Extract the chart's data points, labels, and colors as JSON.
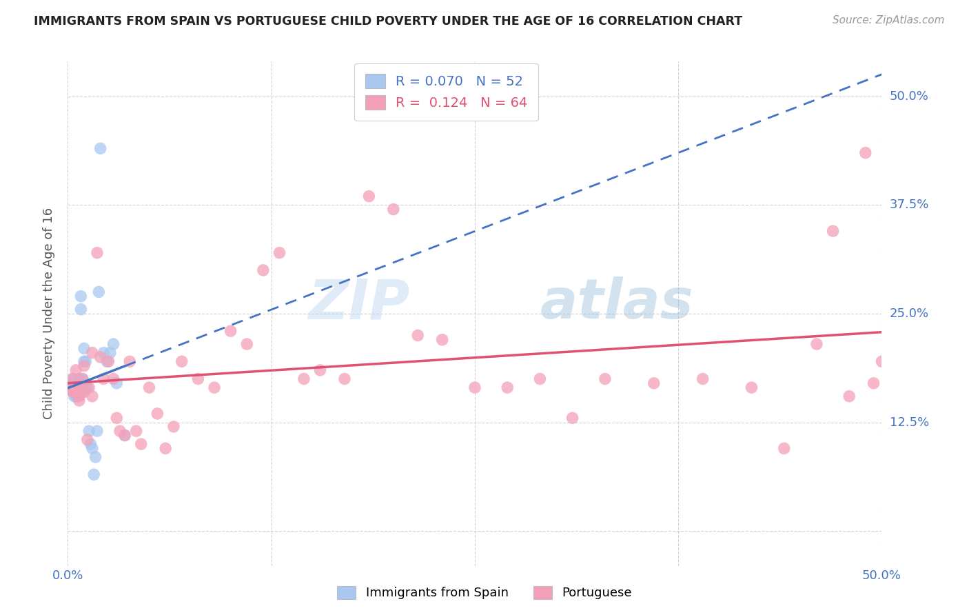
{
  "title": "IMMIGRANTS FROM SPAIN VS PORTUGUESE CHILD POVERTY UNDER THE AGE OF 16 CORRELATION CHART",
  "source": "Source: ZipAtlas.com",
  "ylabel": "Child Poverty Under the Age of 16",
  "legend_label_1": "Immigrants from Spain",
  "legend_label_2": "Portuguese",
  "R1": 0.07,
  "N1": 52,
  "R2": 0.124,
  "N2": 64,
  "color_blue": "#a8c8f0",
  "color_pink": "#f4a0b8",
  "color_blue_text": "#4472c4",
  "color_pink_text": "#e05070",
  "color_line_blue": "#4472c4",
  "color_line_pink": "#e05070",
  "watermark_zip": "ZIP",
  "watermark_atlas": "atlas",
  "xlim": [
    0.0,
    0.5
  ],
  "ylim": [
    -0.04,
    0.54
  ],
  "xticks": [
    0.0,
    0.125,
    0.25,
    0.375,
    0.5
  ],
  "yticks": [
    0.0,
    0.125,
    0.25,
    0.375,
    0.5
  ],
  "ytick_labels_right": [
    "",
    "12.5%",
    "25.0%",
    "37.5%",
    "50.0%"
  ],
  "spain_x": [
    0.001,
    0.002,
    0.002,
    0.003,
    0.003,
    0.003,
    0.003,
    0.004,
    0.004,
    0.004,
    0.004,
    0.005,
    0.005,
    0.005,
    0.005,
    0.005,
    0.005,
    0.006,
    0.006,
    0.006,
    0.006,
    0.006,
    0.007,
    0.007,
    0.007,
    0.007,
    0.007,
    0.008,
    0.008,
    0.008,
    0.009,
    0.009,
    0.01,
    0.01,
    0.01,
    0.011,
    0.011,
    0.012,
    0.013,
    0.014,
    0.015,
    0.016,
    0.017,
    0.018,
    0.019,
    0.02,
    0.022,
    0.024,
    0.026,
    0.028,
    0.03,
    0.035
  ],
  "spain_y": [
    0.17,
    0.17,
    0.165,
    0.165,
    0.16,
    0.17,
    0.175,
    0.16,
    0.16,
    0.155,
    0.165,
    0.16,
    0.165,
    0.155,
    0.155,
    0.16,
    0.165,
    0.165,
    0.16,
    0.155,
    0.165,
    0.17,
    0.175,
    0.165,
    0.175,
    0.155,
    0.16,
    0.255,
    0.27,
    0.165,
    0.16,
    0.175,
    0.21,
    0.195,
    0.17,
    0.195,
    0.165,
    0.165,
    0.115,
    0.1,
    0.095,
    0.065,
    0.085,
    0.115,
    0.275,
    0.44,
    0.205,
    0.195,
    0.205,
    0.215,
    0.17,
    0.11
  ],
  "portuguese_x": [
    0.001,
    0.002,
    0.003,
    0.003,
    0.004,
    0.004,
    0.005,
    0.005,
    0.006,
    0.006,
    0.007,
    0.007,
    0.008,
    0.009,
    0.01,
    0.01,
    0.012,
    0.013,
    0.015,
    0.015,
    0.018,
    0.02,
    0.022,
    0.025,
    0.028,
    0.03,
    0.032,
    0.035,
    0.038,
    0.042,
    0.045,
    0.05,
    0.055,
    0.06,
    0.065,
    0.07,
    0.08,
    0.09,
    0.1,
    0.11,
    0.12,
    0.13,
    0.145,
    0.155,
    0.17,
    0.185,
    0.2,
    0.215,
    0.23,
    0.25,
    0.27,
    0.29,
    0.31,
    0.33,
    0.36,
    0.39,
    0.42,
    0.44,
    0.46,
    0.47,
    0.48,
    0.49,
    0.495,
    0.5
  ],
  "portuguese_y": [
    0.165,
    0.165,
    0.175,
    0.16,
    0.165,
    0.16,
    0.185,
    0.165,
    0.16,
    0.165,
    0.15,
    0.155,
    0.165,
    0.175,
    0.16,
    0.19,
    0.105,
    0.165,
    0.205,
    0.155,
    0.32,
    0.2,
    0.175,
    0.195,
    0.175,
    0.13,
    0.115,
    0.11,
    0.195,
    0.115,
    0.1,
    0.165,
    0.135,
    0.095,
    0.12,
    0.195,
    0.175,
    0.165,
    0.23,
    0.215,
    0.3,
    0.32,
    0.175,
    0.185,
    0.175,
    0.385,
    0.37,
    0.225,
    0.22,
    0.165,
    0.165,
    0.175,
    0.13,
    0.175,
    0.17,
    0.175,
    0.165,
    0.095,
    0.215,
    0.345,
    0.155,
    0.435,
    0.17,
    0.195
  ]
}
